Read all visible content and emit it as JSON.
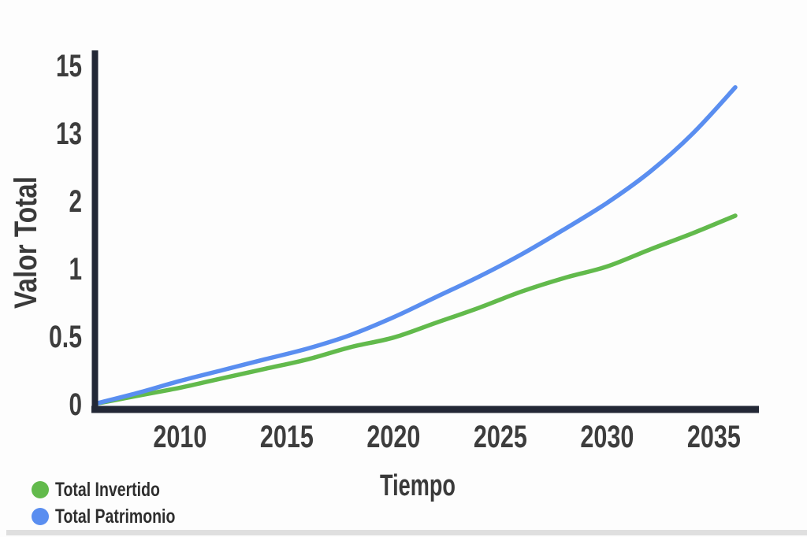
{
  "chart_data": {
    "type": "line",
    "title": "",
    "xlabel": "Tiempo",
    "ylabel": "Valor Total",
    "x_ticks": [
      "2010",
      "2015",
      "2020",
      "2025",
      "2030",
      "2035"
    ],
    "y_ticks": [
      "0",
      "0.5",
      "1",
      "2",
      "13",
      "15"
    ],
    "y_tick_values": [
      0,
      0.5,
      1,
      2,
      13,
      15
    ],
    "y_axis_note": "tick marks are equally spaced on screen although printed values (0, 0.5, 1, 2, 13, 15) are non-linear",
    "x_range": [
      2006,
      2037
    ],
    "grid": false,
    "legend_position": "bottom-left",
    "years": [
      2006,
      2008,
      2010,
      2012,
      2014,
      2016,
      2018,
      2020,
      2022,
      2024,
      2026,
      2028,
      2030,
      2032,
      2034,
      2036
    ],
    "series": [
      {
        "name": "Total Invertido",
        "color": "#62ba4c",
        "values": [
          0,
          0.06,
          0.12,
          0.19,
          0.26,
          0.33,
          0.42,
          0.49,
          0.6,
          0.71,
          0.83,
          0.93,
          1.03,
          1.28,
          1.52,
          1.78
        ]
      },
      {
        "name": "Total Patrimonio",
        "color": "#5a8ef0",
        "values": [
          0,
          0.08,
          0.17,
          0.25,
          0.33,
          0.41,
          0.51,
          0.64,
          0.79,
          0.94,
          1.21,
          1.58,
          1.97,
          6.7,
          12.9,
          14.35
        ]
      }
    ]
  },
  "colors": {
    "axis": "#232836",
    "tick_text": "#3d3d3d",
    "title_text": "#3a3a3a",
    "background": "#fdfdfd",
    "bottom_strip": "#d9d9d9"
  }
}
